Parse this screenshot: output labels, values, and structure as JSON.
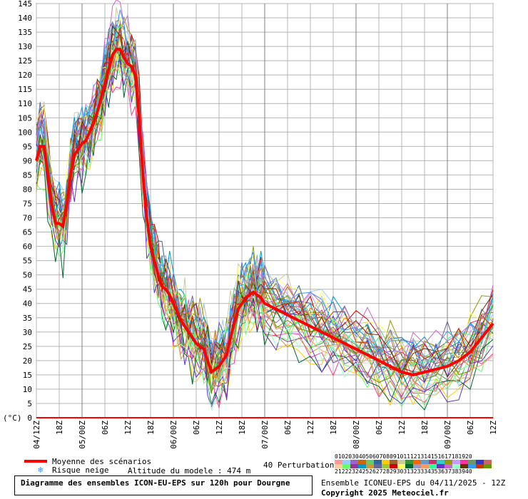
{
  "chart_data": {
    "type": "line",
    "title": "Diagramme des ensembles ICON-EU-EPS sur 120h pour Dourgne",
    "ylabel": "(°C)",
    "ylim": [
      0,
      145
    ],
    "yticks": [
      0,
      5,
      10,
      15,
      20,
      25,
      30,
      35,
      40,
      45,
      50,
      55,
      60,
      65,
      70,
      75,
      80,
      85,
      90,
      95,
      100,
      105,
      110,
      115,
      120,
      125,
      130,
      135,
      140,
      145
    ],
    "xticks": [
      "04/12Z",
      "18Z",
      "05/00Z",
      "06Z",
      "12Z",
      "18Z",
      "06/00Z",
      "06Z",
      "12Z",
      "18Z",
      "07/00Z",
      "06Z",
      "12Z",
      "18Z",
      "08/00Z",
      "06Z",
      "12Z",
      "18Z",
      "09/00Z",
      "06Z",
      "12Z"
    ],
    "grid": true,
    "x_hours": [
      0,
      1,
      2,
      3,
      4,
      5,
      6,
      7,
      8,
      9,
      10,
      11,
      12,
      13,
      14,
      15,
      16,
      17,
      18,
      19,
      20,
      21,
      22,
      23,
      24,
      25,
      26,
      27,
      28,
      29,
      30,
      31,
      32,
      33,
      34,
      35,
      36,
      37,
      38,
      39,
      40,
      41,
      42,
      43,
      44,
      45,
      46,
      47,
      48,
      49,
      50,
      51,
      52,
      53,
      54,
      55,
      56,
      57,
      58,
      59,
      60,
      63,
      66,
      69,
      72,
      75,
      78,
      81,
      84,
      87,
      90,
      93,
      96,
      99,
      102,
      105,
      108,
      111,
      114,
      117,
      120
    ],
    "series": [
      {
        "name": "Moyenne des scénarios",
        "color": "#ff0000",
        "values": [
          90,
          95,
          95,
          85,
          75,
          68,
          68,
          67,
          75,
          85,
          92,
          94,
          96,
          97,
          100,
          103,
          107,
          112,
          117,
          122,
          127,
          129,
          129,
          126,
          124,
          123,
          120,
          105,
          85,
          70,
          60,
          55,
          50,
          46,
          45,
          43,
          40,
          37,
          34,
          32,
          30,
          28,
          26,
          25,
          24,
          20,
          16,
          17,
          18,
          20,
          22,
          28,
          33,
          38,
          40,
          42,
          43,
          44,
          43,
          42,
          40,
          38,
          36,
          34,
          32,
          30,
          28,
          26,
          24,
          22,
          20,
          18,
          16,
          15,
          16,
          17,
          18,
          20,
          23,
          28,
          33
        ]
      }
    ],
    "perturbation_count": 40
  },
  "legend": {
    "mean_label": "Moyenne des scénarios",
    "snow_label": "Risque neige",
    "altitude_label": "Altitude du modele : 474 m",
    "perturbations_label": "40 Perturbations",
    "pert_numbers_row1": "0102030405060708091011121314151617181920",
    "pert_numbers_row2": "2122232425262728293031323334353637383940",
    "pert_colors": [
      "#ff9999",
      "#99ccff",
      "#9966cc",
      "#cc6600",
      "#66cc66",
      "#336699",
      "#ffcc00",
      "#996633",
      "#cccc99",
      "#339933",
      "#ff6600",
      "#6699cc",
      "#cc3366",
      "#33cccc",
      "#999900",
      "#cc99ff",
      "#ff3399",
      "#669966",
      "#3333cc",
      "#cc6666",
      "#ffcc99",
      "#66ff66",
      "#993399",
      "#0099cc",
      "#cc9933",
      "#666699",
      "#99cc33",
      "#cc0000",
      "#ffff66",
      "#006633",
      "#9999cc",
      "#ff9966",
      "#33ff99",
      "#6633cc",
      "#cc66cc",
      "#99ffcc",
      "#663300",
      "#3399ff",
      "#cc3300",
      "#669900"
    ]
  },
  "title_box": {
    "line1": "Diagramme des ensembles ICON-EU-EPS sur 120h pour Dourgne"
  },
  "footer": {
    "run_info": "Ensemble ICONEU-EPS du 04/11/2025 - 12Z",
    "copyright": "Copyright 2025 Meteociel.fr"
  }
}
